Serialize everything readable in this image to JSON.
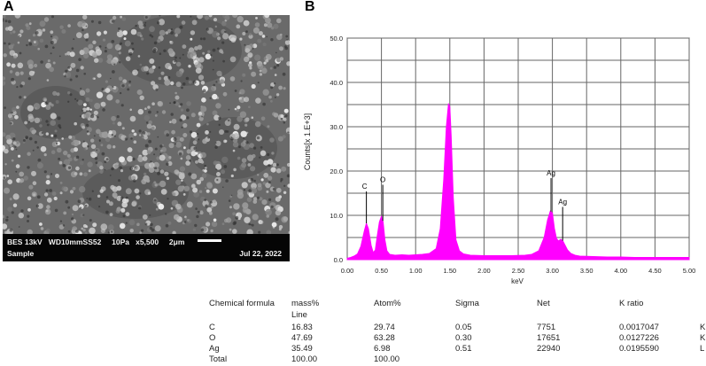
{
  "panels": {
    "a_label": "A",
    "b_label": "B"
  },
  "sem": {
    "info_line1_parts": [
      "BES 13kV",
      "WD10mmSS52",
      "10Pa",
      "x5,500",
      "2μm"
    ],
    "info_line2": "Sample",
    "date": "Jul 22, 2022"
  },
  "chart_data": {
    "type": "line",
    "xlabel": "keV",
    "ylabel": "Counts[x 1.E+3]",
    "xlim": [
      0.0,
      5.0
    ],
    "ylim": [
      0.0,
      50.0
    ],
    "x_ticks": [
      "0.00",
      "0.50",
      "1.00",
      "1.50",
      "2.00",
      "2.50",
      "3.00",
      "3.50",
      "4.00",
      "4.50",
      "5.00"
    ],
    "y_ticks": [
      "0.0",
      "10.0",
      "20.0",
      "30.0",
      "40.0",
      "50.0"
    ],
    "grid": true,
    "fill_color": "#ff00ff",
    "series": [
      {
        "x": [
          0.0,
          0.05,
          0.1,
          0.15,
          0.2,
          0.25,
          0.28,
          0.31,
          0.35,
          0.38,
          0.41,
          0.44,
          0.47,
          0.5,
          0.525,
          0.55,
          0.58,
          0.62,
          0.7,
          0.8,
          0.9,
          1.0,
          1.1,
          1.2,
          1.3,
          1.36,
          1.41,
          1.45,
          1.48,
          1.5,
          1.52,
          1.55,
          1.59,
          1.64,
          1.7,
          1.8,
          2.0,
          2.2,
          2.4,
          2.6,
          2.7,
          2.8,
          2.88,
          2.93,
          2.97,
          3.0,
          3.03,
          3.06,
          3.09,
          3.12,
          3.15,
          3.18,
          3.22,
          3.27,
          3.33,
          3.4,
          3.6,
          3.8,
          4.0,
          4.2,
          4.5,
          5.0
        ],
        "y": [
          0.3,
          0.5,
          0.8,
          1.3,
          3.0,
          6.5,
          8.2,
          7.0,
          3.2,
          1.6,
          2.2,
          5.5,
          8.5,
          9.8,
          8.5,
          4.5,
          2.0,
          1.2,
          1.0,
          1.1,
          1.0,
          1.1,
          1.2,
          1.4,
          2.5,
          7.0,
          18.0,
          30.0,
          35.2,
          34.5,
          28.0,
          14.0,
          4.5,
          2.0,
          1.3,
          1.0,
          0.9,
          0.9,
          0.9,
          1.0,
          1.2,
          2.0,
          5.0,
          9.0,
          11.0,
          10.5,
          7.0,
          4.8,
          4.2,
          4.6,
          4.3,
          3.4,
          2.2,
          1.4,
          1.0,
          0.8,
          0.7,
          0.6,
          0.6,
          0.5,
          0.5,
          0.5
        ]
      }
    ],
    "annotations": [
      {
        "text": "C",
        "x": 0.28,
        "y": 16.0
      },
      {
        "text": "O",
        "x": 0.52,
        "y": 17.5
      },
      {
        "text": "Ag",
        "x": 2.98,
        "y": 19.0
      },
      {
        "text": "Ag",
        "x": 3.15,
        "y": 12.5
      }
    ]
  },
  "table": {
    "headers": [
      "Chemical formula",
      "mass%",
      "Atom%",
      "Sigma",
      "Net",
      "K ratio"
    ],
    "subheader": "Line",
    "rows": [
      {
        "formula": "C",
        "mass": "16.83",
        "atom": "29.74",
        "sigma": "0.05",
        "net": "7751",
        "kratio": "0.0017047",
        "line": "K"
      },
      {
        "formula": "O",
        "mass": "47.69",
        "atom": "63.28",
        "sigma": "0.30",
        "net": "17651",
        "kratio": "0.0127226",
        "line": "K"
      },
      {
        "formula": "Ag",
        "mass": "35.49",
        "atom": "6.98",
        "sigma": "0.51",
        "net": "22940",
        "kratio": "0.0195590",
        "line": "L"
      }
    ],
    "total": {
      "formula": "Total",
      "mass": "100.00",
      "atom": "100.00"
    }
  }
}
